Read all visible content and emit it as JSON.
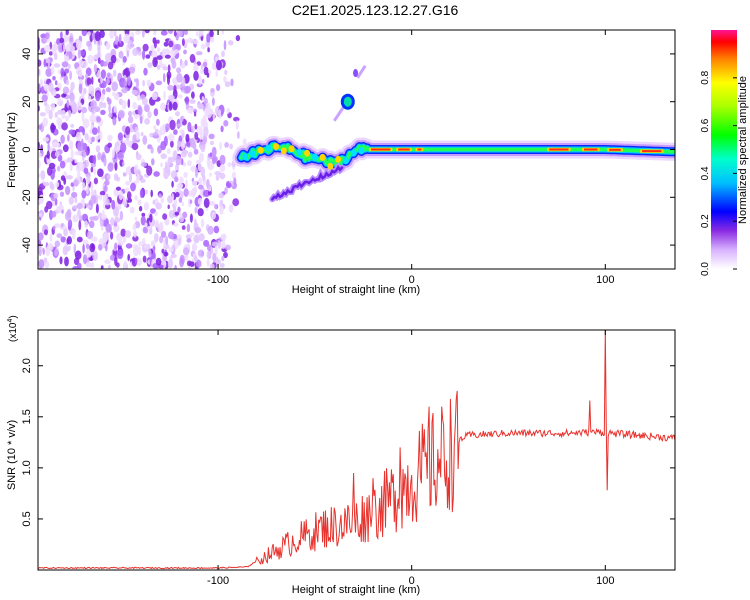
{
  "title": "C2E1.2025.123.12.27.G16",
  "chart_data": [
    {
      "type": "heatmap",
      "name": "spectrogram",
      "xlabel": "Height of straight line (km)",
      "ylabel": "Frequency (Hz)",
      "xlim": [
        -193,
        136
      ],
      "ylim": [
        -50,
        50
      ],
      "xticks": [
        -100,
        0,
        100
      ],
      "yticks": [
        -40,
        -20,
        0,
        20,
        40
      ],
      "noise_region_x": [
        -193,
        -90
      ],
      "signal_ridge": [
        {
          "x": -88,
          "y": -3
        },
        {
          "x": -78,
          "y": -1
        },
        {
          "x": -70,
          "y": 1
        },
        {
          "x": -62,
          "y": 0
        },
        {
          "x": -55,
          "y": -3
        },
        {
          "x": -48,
          "y": -4
        },
        {
          "x": -40,
          "y": -6
        },
        {
          "x": -33,
          "y": -3
        },
        {
          "x": -28,
          "y": 0
        },
        {
          "x": -22,
          "y": 0
        },
        {
          "x": -10,
          "y": 0
        },
        {
          "x": 0,
          "y": 0
        },
        {
          "x": 20,
          "y": 0
        },
        {
          "x": 60,
          "y": 0
        },
        {
          "x": 100,
          "y": 0
        },
        {
          "x": 136,
          "y": -1
        }
      ],
      "secondary_features": [
        {
          "x": -33,
          "y": 20,
          "label": "spot"
        },
        {
          "x": -48,
          "y": -14,
          "label": "lower branch"
        }
      ],
      "colorbar": {
        "label": "Normalized spectral amplitude",
        "range": [
          0,
          1
        ],
        "ticks": [
          "0.0",
          "0.2",
          "0.4",
          "0.6",
          "0.8"
        ]
      }
    },
    {
      "type": "line",
      "name": "snr",
      "xlabel": "Height of straight line (km)",
      "ylabel": "SNR (10 * v/v)",
      "multiplier": "(x10^4)",
      "multiplier_base": "(x10",
      "multiplier_exp": "4",
      "xlim": [
        -193,
        136
      ],
      "ylim": [
        0,
        2.35
      ],
      "xticks": [
        -100,
        0,
        100
      ],
      "yticks": [
        "0.5",
        "1.0",
        "1.5",
        "2.0"
      ],
      "color": "#e8322d",
      "series_envelope": [
        {
          "x": -193,
          "y": 0.02
        },
        {
          "x": -100,
          "y": 0.02
        },
        {
          "x": -85,
          "y": 0.03
        },
        {
          "x": -75,
          "y": 0.15
        },
        {
          "x": -60,
          "y": 0.32
        },
        {
          "x": -45,
          "y": 0.45
        },
        {
          "x": -30,
          "y": 0.5
        },
        {
          "x": -15,
          "y": 0.68
        },
        {
          "x": 0,
          "y": 0.95
        },
        {
          "x": 10,
          "y": 1.1
        },
        {
          "x": 20,
          "y": 1.25
        },
        {
          "x": 30,
          "y": 1.32
        },
        {
          "x": 50,
          "y": 1.34
        },
        {
          "x": 80,
          "y": 1.34
        },
        {
          "x": 95,
          "y": 1.35
        },
        {
          "x": 110,
          "y": 1.33
        },
        {
          "x": 136,
          "y": 1.29
        }
      ],
      "spikes": [
        {
          "x": -30,
          "y": 0.95
        },
        {
          "x": -20,
          "y": 0.9
        },
        {
          "x": -6,
          "y": 1.2
        },
        {
          "x": 9,
          "y": 1.6
        },
        {
          "x": 92,
          "y": 1.66
        },
        {
          "x": 100,
          "y": 2.35
        },
        {
          "x": 101,
          "y": 0.78
        }
      ]
    }
  ]
}
